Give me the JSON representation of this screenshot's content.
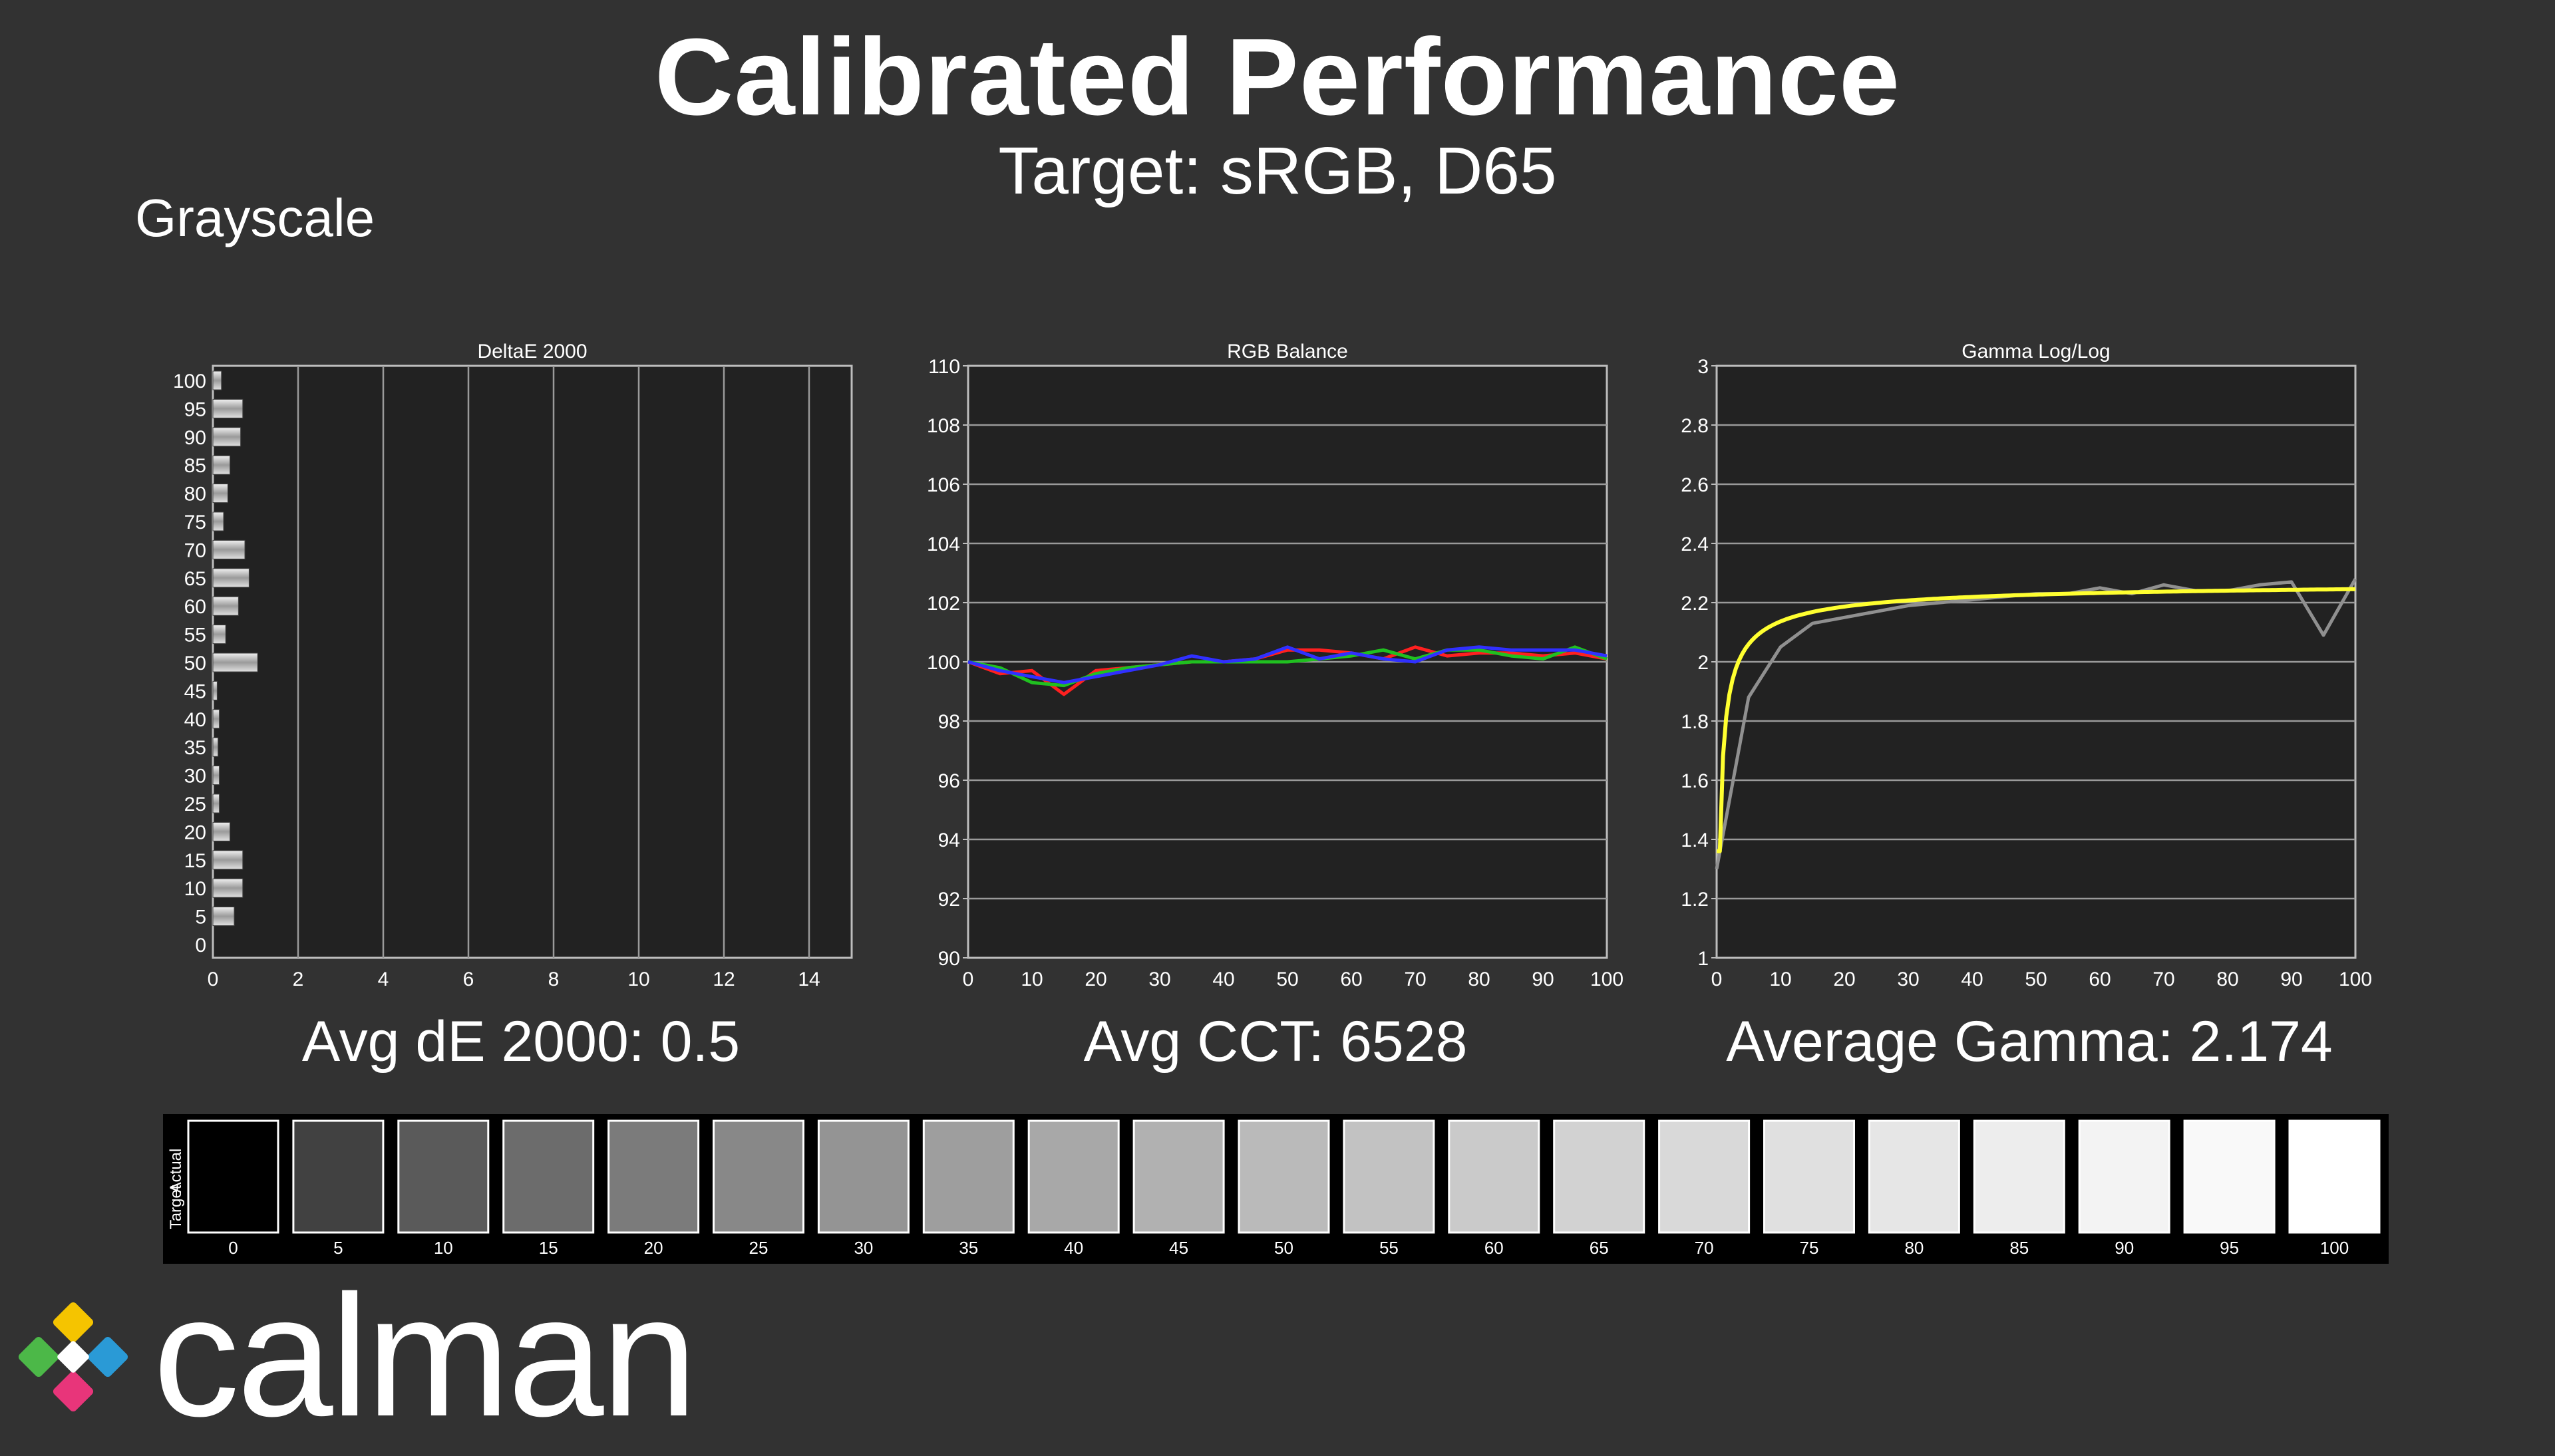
{
  "header": {
    "title": "Calibrated Performance",
    "subtitle": "Target: sRGB, D65",
    "section": "Grayscale"
  },
  "summaries": {
    "deltae": "Avg dE 2000: 0.5",
    "cct": "Avg CCT: 6528",
    "gamma": "Average Gamma: 2.174"
  },
  "chart_data": [
    {
      "type": "bar",
      "orientation": "horizontal",
      "title": "DeltaE 2000",
      "categories": [
        0,
        5,
        10,
        15,
        20,
        25,
        30,
        35,
        40,
        45,
        50,
        55,
        60,
        65,
        70,
        75,
        80,
        85,
        90,
        95,
        100
      ],
      "values": [
        0.0,
        0.5,
        0.7,
        0.7,
        0.4,
        0.15,
        0.15,
        0.12,
        0.15,
        0.1,
        1.05,
        0.3,
        0.6,
        0.85,
        0.75,
        0.25,
        0.35,
        0.4,
        0.65,
        0.7,
        0.2
      ],
      "xlim": [
        0,
        15
      ],
      "xticks": [
        0,
        2,
        4,
        6,
        8,
        10,
        12,
        14
      ],
      "grid": true
    },
    {
      "type": "line",
      "title": "RGB Balance",
      "x": [
        0,
        5,
        10,
        15,
        20,
        25,
        30,
        35,
        40,
        45,
        50,
        55,
        60,
        65,
        70,
        75,
        80,
        85,
        90,
        95,
        100
      ],
      "ylim": [
        90,
        110
      ],
      "yticks": [
        90,
        92,
        94,
        96,
        98,
        100,
        102,
        104,
        106,
        108,
        110
      ],
      "xticks": [
        0,
        10,
        20,
        30,
        40,
        50,
        60,
        70,
        80,
        90,
        100
      ],
      "series": [
        {
          "color": "#ff2020",
          "values": [
            100,
            99.6,
            99.7,
            98.9,
            99.7,
            99.8,
            99.9,
            100.0,
            100.0,
            100.1,
            100.4,
            100.4,
            100.3,
            100.1,
            100.5,
            100.2,
            100.3,
            100.3,
            100.2,
            100.3,
            100.1
          ]
        },
        {
          "color": "#20c020",
          "values": [
            100,
            99.8,
            99.3,
            99.2,
            99.6,
            99.8,
            99.9,
            100.0,
            100.0,
            100.0,
            100.0,
            100.1,
            100.2,
            100.4,
            100.1,
            100.4,
            100.4,
            100.2,
            100.1,
            100.5,
            100.1
          ]
        },
        {
          "color": "#3030ff",
          "values": [
            100,
            99.7,
            99.5,
            99.3,
            99.5,
            99.7,
            99.9,
            100.2,
            100.0,
            100.1,
            100.5,
            100.1,
            100.3,
            100.1,
            100.0,
            100.4,
            100.5,
            100.4,
            100.4,
            100.4,
            100.2
          ]
        }
      ],
      "grid": true
    },
    {
      "type": "line",
      "title": "Gamma Log/Log",
      "x": [
        0,
        5,
        10,
        15,
        20,
        25,
        30,
        35,
        40,
        45,
        50,
        55,
        60,
        65,
        70,
        75,
        80,
        85,
        90,
        95,
        100
      ],
      "ylim": [
        1,
        3
      ],
      "yticks": [
        1,
        1.2,
        1.4,
        1.6,
        1.8,
        2,
        2.2,
        2.4,
        2.6,
        2.8,
        3
      ],
      "xticks": [
        0,
        10,
        20,
        30,
        40,
        50,
        60,
        70,
        80,
        90,
        100
      ],
      "series": [
        {
          "color": "#909090",
          "values": [
            1.3,
            1.88,
            2.05,
            2.13,
            2.15,
            2.17,
            2.19,
            2.2,
            2.21,
            2.22,
            2.23,
            2.23,
            2.25,
            2.23,
            2.26,
            2.24,
            2.24,
            2.26,
            2.27,
            2.09,
            2.28
          ]
        },
        {
          "color": "#ffff30",
          "curve": "target",
          "values": [
            1.36,
            1.88,
            2.03,
            2.09,
            2.13,
            2.16,
            2.18,
            2.2,
            2.21,
            2.22,
            2.23,
            2.24,
            2.25,
            2.25,
            2.26,
            2.26,
            2.27,
            2.27,
            2.27,
            2.28,
            2.28
          ]
        }
      ],
      "grid": true
    }
  ],
  "swatches": {
    "side_labels": [
      "Actual",
      "Target"
    ],
    "levels": [
      0,
      5,
      10,
      15,
      20,
      25,
      30,
      35,
      40,
      45,
      50,
      55,
      60,
      65,
      70,
      75,
      80,
      85,
      90,
      95,
      100
    ],
    "labels": [
      "0",
      "5",
      "10",
      "15",
      "20",
      "25",
      "30",
      "35",
      "40",
      "45",
      "50",
      "55",
      "60",
      "65",
      "70",
      "75",
      "80",
      "85",
      "90",
      "95",
      "100"
    ]
  },
  "logo": {
    "text": "calman",
    "colors": [
      "#f5c400",
      "#e8357a",
      "#2a9ad6",
      "#4cb848"
    ]
  }
}
